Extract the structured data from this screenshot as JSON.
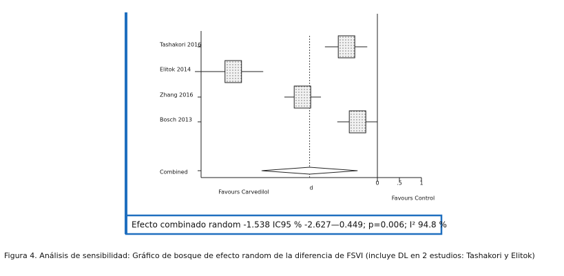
{
  "chart_data": {
    "type": "forest",
    "studies": [
      {
        "name": "Tashakori 2016",
        "estimate": -0.7,
        "ci": [
          -1.19,
          -0.23
        ]
      },
      {
        "name": "Elitok 2014",
        "estimate": -3.27,
        "ci": [
          -4.14,
          -2.59
        ]
      },
      {
        "name": "Zhang 2016",
        "estimate": -1.7,
        "ci": [
          -2.11,
          -1.28
        ]
      },
      {
        "name": "Bosch 2013",
        "estimate": -0.45,
        "ci": [
          -0.91,
          0
        ]
      }
    ],
    "combined": {
      "name": "Combined",
      "estimate": -1.538,
      "ci": [
        -2.627,
        -0.449
      ]
    },
    "xlim": [
      -4,
      1
    ],
    "xticks": [
      0,
      {
        "value": 0.5,
        "label": ".5"
      },
      1
    ],
    "xlabel": "d",
    "left_label": "Favours Carvedilol",
    "right_label": "Favours Control",
    "summary": "Efecto combinado random -1.538 IC95 % -2.627—0.449; p=0.006; I² 94.8 %",
    "caption": "Figura 4. Análisis de sensibilidad: Gráfico de bosque de efecto random de la diferencia de FSVI (incluye DL en 2 estudios: Tashakori y Elitok)"
  }
}
